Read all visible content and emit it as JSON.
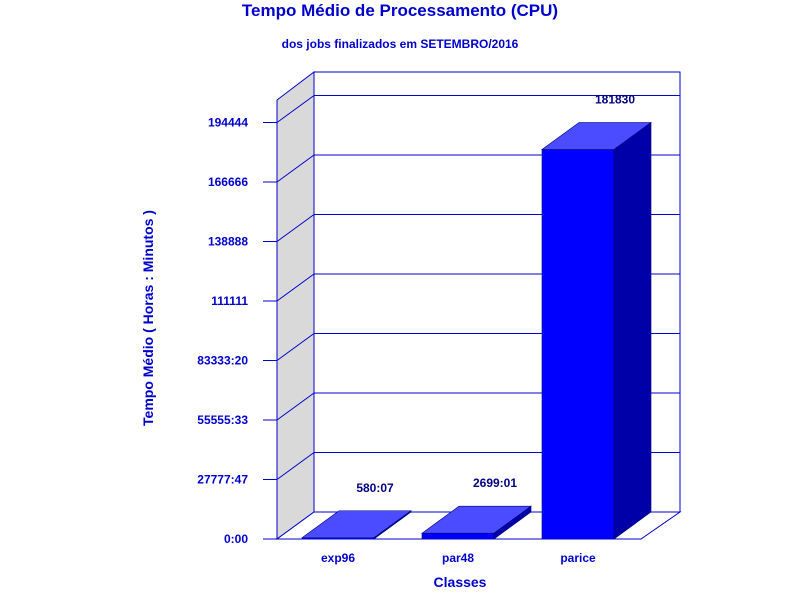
{
  "chart_data": {
    "type": "bar",
    "title": "Tempo Médio de Processamento (CPU)",
    "subtitle": "dos jobs finalizados em SETEMBRO/2016",
    "xlabel": "Classes",
    "ylabel": "Tempo Médio ( Horas : Minutos )",
    "categories": [
      "exp96",
      "par48",
      "parice"
    ],
    "values": [
      580.12,
      2699.02,
      181830
    ],
    "value_labels": [
      "580:07",
      "2699:01",
      "181830"
    ],
    "yticks": [
      {
        "value": 0,
        "label": "0:00"
      },
      {
        "value": 27777.78,
        "label": "27777:47"
      },
      {
        "value": 55555.55,
        "label": "55555:33"
      },
      {
        "value": 83333.33,
        "label": "83333:20"
      },
      {
        "value": 111111,
        "label": "111111"
      },
      {
        "value": 138888,
        "label": "138888"
      },
      {
        "value": 166666,
        "label": "166666"
      },
      {
        "value": 194444,
        "label": "194444"
      }
    ],
    "ylim": [
      0,
      194444
    ],
    "grid": true,
    "legend": "none",
    "colors": {
      "bar_front": "#0000ff",
      "bar_top": "#4b4bff",
      "bar_side": "#0000a8",
      "text": "#0000cc",
      "data_label": "#000080",
      "axis": "#0000cc",
      "side_wall": "#d9d9d9"
    }
  }
}
